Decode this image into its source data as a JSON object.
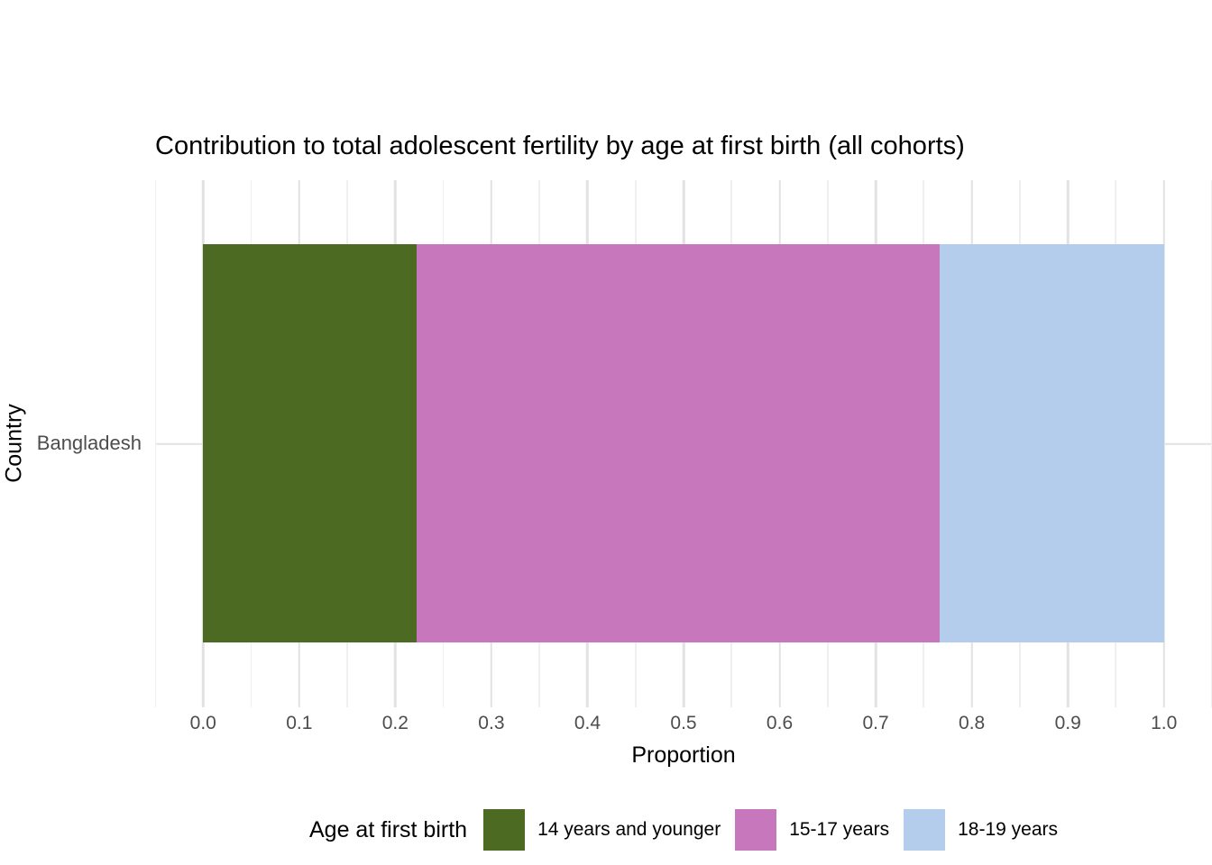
{
  "chart_data": {
    "type": "bar",
    "orientation": "horizontal",
    "stacked": true,
    "title": "Contribution to total adolescent fertility by age at first birth (all cohorts)",
    "xlabel": "Proportion",
    "ylabel": "Country",
    "categories": [
      "Bangladesh"
    ],
    "series": [
      {
        "name": "14 years and younger",
        "color": "#4C6A22",
        "values": [
          0.222
        ]
      },
      {
        "name": "15-17 years",
        "color": "#C778BC",
        "values": [
          0.545
        ]
      },
      {
        "name": "18-19 years",
        "color": "#B4CDED",
        "values": [
          0.233
        ]
      }
    ],
    "xlim": [
      0,
      1
    ],
    "panel_expand": 0.05,
    "x_ticks": [
      0.0,
      0.1,
      0.2,
      0.3,
      0.4,
      0.5,
      0.6,
      0.7,
      0.8,
      0.9,
      1.0
    ],
    "x_tick_labels": [
      "0.0",
      "0.1",
      "0.2",
      "0.3",
      "0.4",
      "0.5",
      "0.6",
      "0.7",
      "0.8",
      "0.9",
      "1.0"
    ],
    "grid": true,
    "legend": {
      "title": "Age at first birth",
      "position": "bottom"
    }
  },
  "colors": {
    "background": "#FFFFFF",
    "grid_major": "#E2E2E2",
    "grid_minor": "#EFEFEF",
    "tick_text": "#4D4D4D",
    "text": "#000000"
  }
}
